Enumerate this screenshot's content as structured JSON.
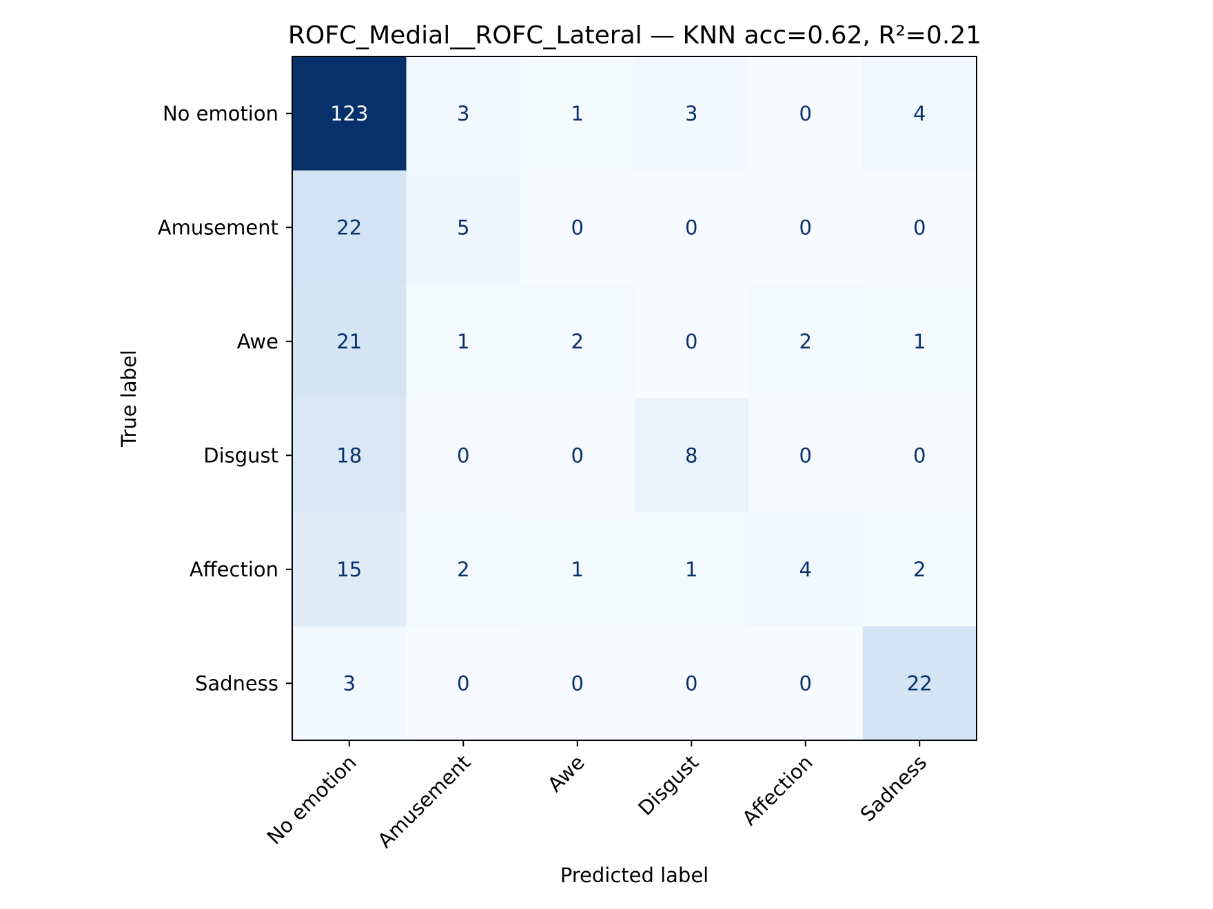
{
  "chart_data": {
    "type": "heatmap",
    "title": "ROFC_Medial__ROFC_Lateral — KNN acc=0.62, R²=0.21",
    "xlabel": "Predicted label",
    "ylabel": "True label",
    "x_categories": [
      "No emotion",
      "Amusement",
      "Awe",
      "Disgust",
      "Affection",
      "Sadness"
    ],
    "y_categories": [
      "No emotion",
      "Amusement",
      "Awe",
      "Disgust",
      "Affection",
      "Sadness"
    ],
    "values": [
      [
        123,
        3,
        1,
        3,
        0,
        4
      ],
      [
        22,
        5,
        0,
        0,
        0,
        0
      ],
      [
        21,
        1,
        2,
        0,
        2,
        1
      ],
      [
        18,
        0,
        0,
        8,
        0,
        0
      ],
      [
        15,
        2,
        1,
        1,
        4,
        2
      ],
      [
        3,
        0,
        0,
        0,
        0,
        22
      ]
    ],
    "colormap": "Blues",
    "value_range": [
      0,
      123
    ],
    "colorbar": false,
    "grid": false
  }
}
